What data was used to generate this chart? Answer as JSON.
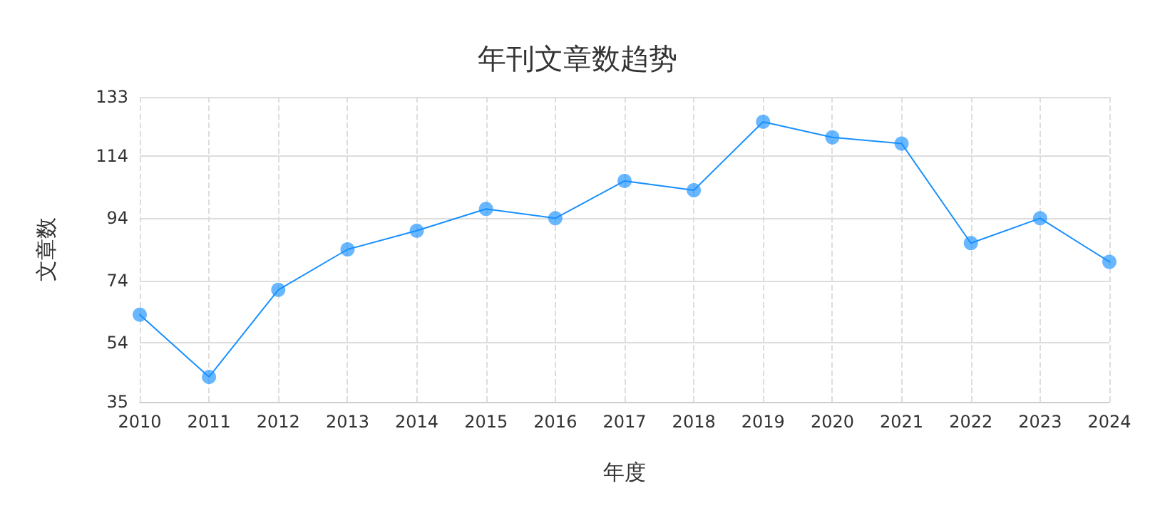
{
  "chart_data": {
    "type": "line",
    "title": "年刊文章数趋势",
    "xlabel": "年度",
    "ylabel": "文章数",
    "categories": [
      "2010",
      "2011",
      "2012",
      "2013",
      "2014",
      "2015",
      "2016",
      "2017",
      "2018",
      "2019",
      "2020",
      "2021",
      "2022",
      "2023",
      "2024"
    ],
    "series": [
      {
        "color": "#1890ff",
        "values": [
          63,
          43,
          71,
          84,
          90,
          97,
          94,
          106,
          103,
          125,
          120,
          118,
          86,
          94,
          80
        ]
      }
    ],
    "ylim": [
      35,
      133
    ],
    "yticks": [
      35,
      54,
      74,
      94,
      114,
      133
    ],
    "grid": true,
    "marker": "circle",
    "line_style": "solid"
  }
}
